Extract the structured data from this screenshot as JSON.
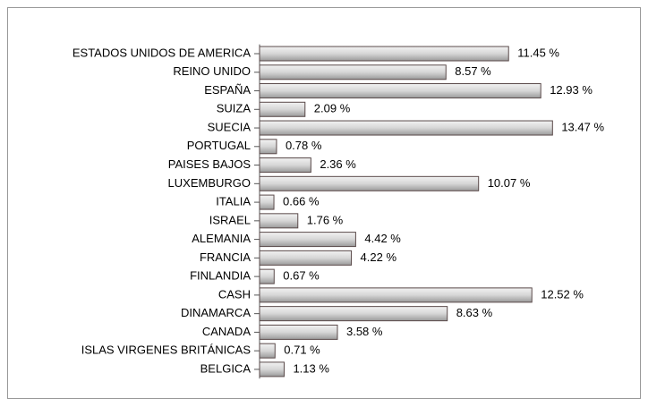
{
  "chart_data": {
    "type": "bar",
    "orientation": "horizontal",
    "categories": [
      "ESTADOS UNIDOS DE AMERICA",
      "REINO UNIDO",
      "ESPAÑA",
      "SUIZA",
      "SUECIA",
      "PORTUGAL",
      "PAISES BAJOS",
      "LUXEMBURGO",
      "ITALIA",
      "ISRAEL",
      "ALEMANIA",
      "FRANCIA",
      "FINLANDIA",
      "CASH",
      "DINAMARCA",
      "CANADA",
      "ISLAS VIRGENES BRITÁNICAS",
      "BELGICA"
    ],
    "values": [
      11.45,
      8.57,
      12.93,
      2.09,
      13.47,
      0.78,
      2.36,
      10.07,
      0.66,
      1.76,
      4.42,
      4.22,
      0.67,
      12.52,
      8.63,
      3.58,
      0.71,
      1.13
    ],
    "value_labels": [
      "11.45 %",
      "8.57 %",
      "12.93 %",
      "2.09 %",
      "13.47 %",
      "0.78 %",
      "2.36 %",
      "10.07 %",
      "0.66 %",
      "1.76 %",
      "4.42 %",
      "4.22 %",
      "0.67 %",
      "12.52 %",
      "8.63 %",
      "3.58 %",
      "0.71 %",
      "1.13 %"
    ],
    "color": "#c8c8c8"
  }
}
